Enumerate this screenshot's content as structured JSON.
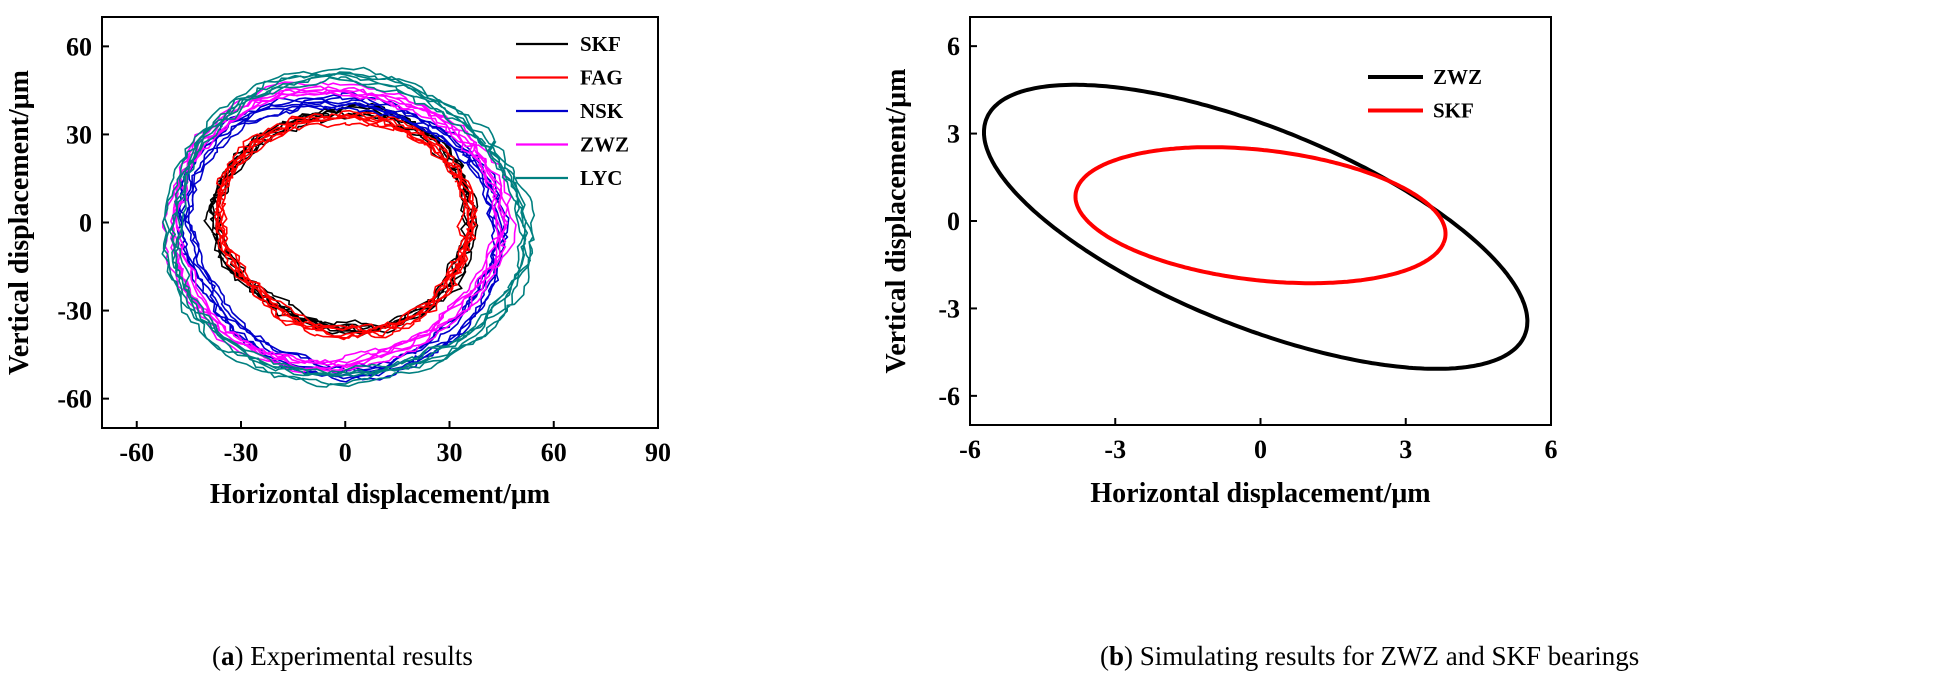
{
  "chart_data": [
    {
      "id": "a",
      "type": "line",
      "xlabel": "Horizontal displacement/μm",
      "ylabel": "Vertical displacement/μm",
      "xlim": [
        -70,
        90
      ],
      "ylim": [
        -70,
        70
      ],
      "xticks": [
        -60,
        -30,
        0,
        30,
        60,
        90
      ],
      "yticks": [
        -60,
        -30,
        0,
        30,
        60
      ],
      "xtick_labels": [
        "-60",
        "-30",
        "0",
        "30",
        "60",
        "90"
      ],
      "ytick_labels": [
        "-60",
        "-30",
        "0",
        "30",
        "60"
      ],
      "legend_position": "top-right",
      "series": [
        {
          "name": "SKF",
          "color": "#000000",
          "orbit": {
            "cx": 0,
            "cy": 1,
            "rx": 36,
            "ry": 37,
            "tilt_deg": 30
          }
        },
        {
          "name": "FAG",
          "color": "#ff0000",
          "orbit": {
            "cx": 0,
            "cy": 0,
            "rx": 35,
            "ry": 37,
            "tilt_deg": 25
          }
        },
        {
          "name": "NSK",
          "color": "#0000cc",
          "orbit": {
            "cx": -1,
            "cy": -4,
            "rx": 44,
            "ry": 47,
            "tilt_deg": 35
          }
        },
        {
          "name": "ZWZ",
          "color": "#ff00ff",
          "orbit": {
            "cx": -3,
            "cy": -1,
            "rx": 48,
            "ry": 47,
            "tilt_deg": 35
          }
        },
        {
          "name": "LYC",
          "color": "#008080",
          "orbit": {
            "cx": 0,
            "cy": -2,
            "rx": 51,
            "ry": 52,
            "tilt_deg": 35
          }
        }
      ]
    },
    {
      "id": "b",
      "type": "line",
      "xlabel": "Horizontal displacement/μm",
      "ylabel": "Vertical displacement/μm",
      "xlim": [
        -6,
        6
      ],
      "ylim": [
        -7,
        7
      ],
      "xticks": [
        -6,
        -3,
        0,
        3,
        6
      ],
      "yticks": [
        -6,
        -3,
        0,
        3,
        6
      ],
      "xtick_labels": [
        "-6",
        "-3",
        "0",
        "3",
        "6"
      ],
      "ytick_labels": [
        "-6",
        "-3",
        "0",
        "3",
        "6"
      ],
      "legend_position": "top-right",
      "series": [
        {
          "name": "ZWZ",
          "color": "#000000",
          "orbit": {
            "cx": -0.1,
            "cy": -0.2,
            "rx": 6.8,
            "ry": 3.0,
            "tilt_deg": -39
          }
        },
        {
          "name": "SKF",
          "color": "#ff0000",
          "orbit": {
            "cx": 0,
            "cy": 0.2,
            "rx": 3.9,
            "ry": 2.2,
            "tilt_deg": -14
          }
        }
      ]
    }
  ],
  "captions": {
    "a": {
      "letter": "a",
      "text": " Experimental results"
    },
    "b": {
      "letter": "b",
      "text": " Simulating results for ZWZ and SKF bearings"
    }
  }
}
